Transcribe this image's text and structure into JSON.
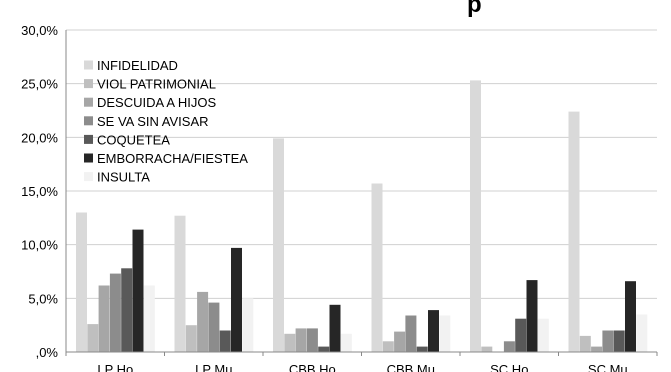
{
  "chart_data": {
    "type": "bar",
    "title": "p",
    "categories": [
      "LP Ho",
      "LP Mu",
      "CBB Ho",
      "CBB Mu",
      "SC Ho",
      "SC Mu"
    ],
    "y_ticks": [
      ",0%",
      "5,0%",
      "10,0%",
      "15,0%",
      "20,0%",
      "25,0%",
      "30,0%"
    ],
    "ylim": [
      0,
      30
    ],
    "legend_position": "top-left-inside",
    "grid": true,
    "series": [
      {
        "name": "INFIDELIDAD",
        "color": "#d9d9d9",
        "values": [
          13.0,
          12.7,
          19.9,
          15.7,
          25.3,
          22.4
        ]
      },
      {
        "name": "VIOL PATRIMONIAL",
        "color": "#bfbfbf",
        "values": [
          2.6,
          2.5,
          1.7,
          1.0,
          0.5,
          1.5
        ]
      },
      {
        "name": "DESCUIDA A HIJOS",
        "color": "#a6a6a6",
        "values": [
          6.2,
          5.6,
          2.2,
          1.9,
          0.0,
          0.5
        ]
      },
      {
        "name": "SE VA SIN AVISAR",
        "color": "#8c8c8c",
        "values": [
          7.3,
          4.6,
          2.2,
          3.4,
          1.0,
          2.0
        ]
      },
      {
        "name": "COQUETEA",
        "color": "#595959",
        "values": [
          7.8,
          2.0,
          0.5,
          0.5,
          3.1,
          2.0
        ]
      },
      {
        "name": "EMBORRACHA/FIESTEA",
        "color": "#262626",
        "values": [
          11.4,
          9.7,
          4.4,
          3.9,
          6.7,
          6.6
        ]
      },
      {
        "name": "INSULTA",
        "color": "#f2f2f2",
        "values": [
          6.2,
          5.0,
          1.7,
          3.4,
          3.1,
          3.5
        ]
      }
    ]
  }
}
